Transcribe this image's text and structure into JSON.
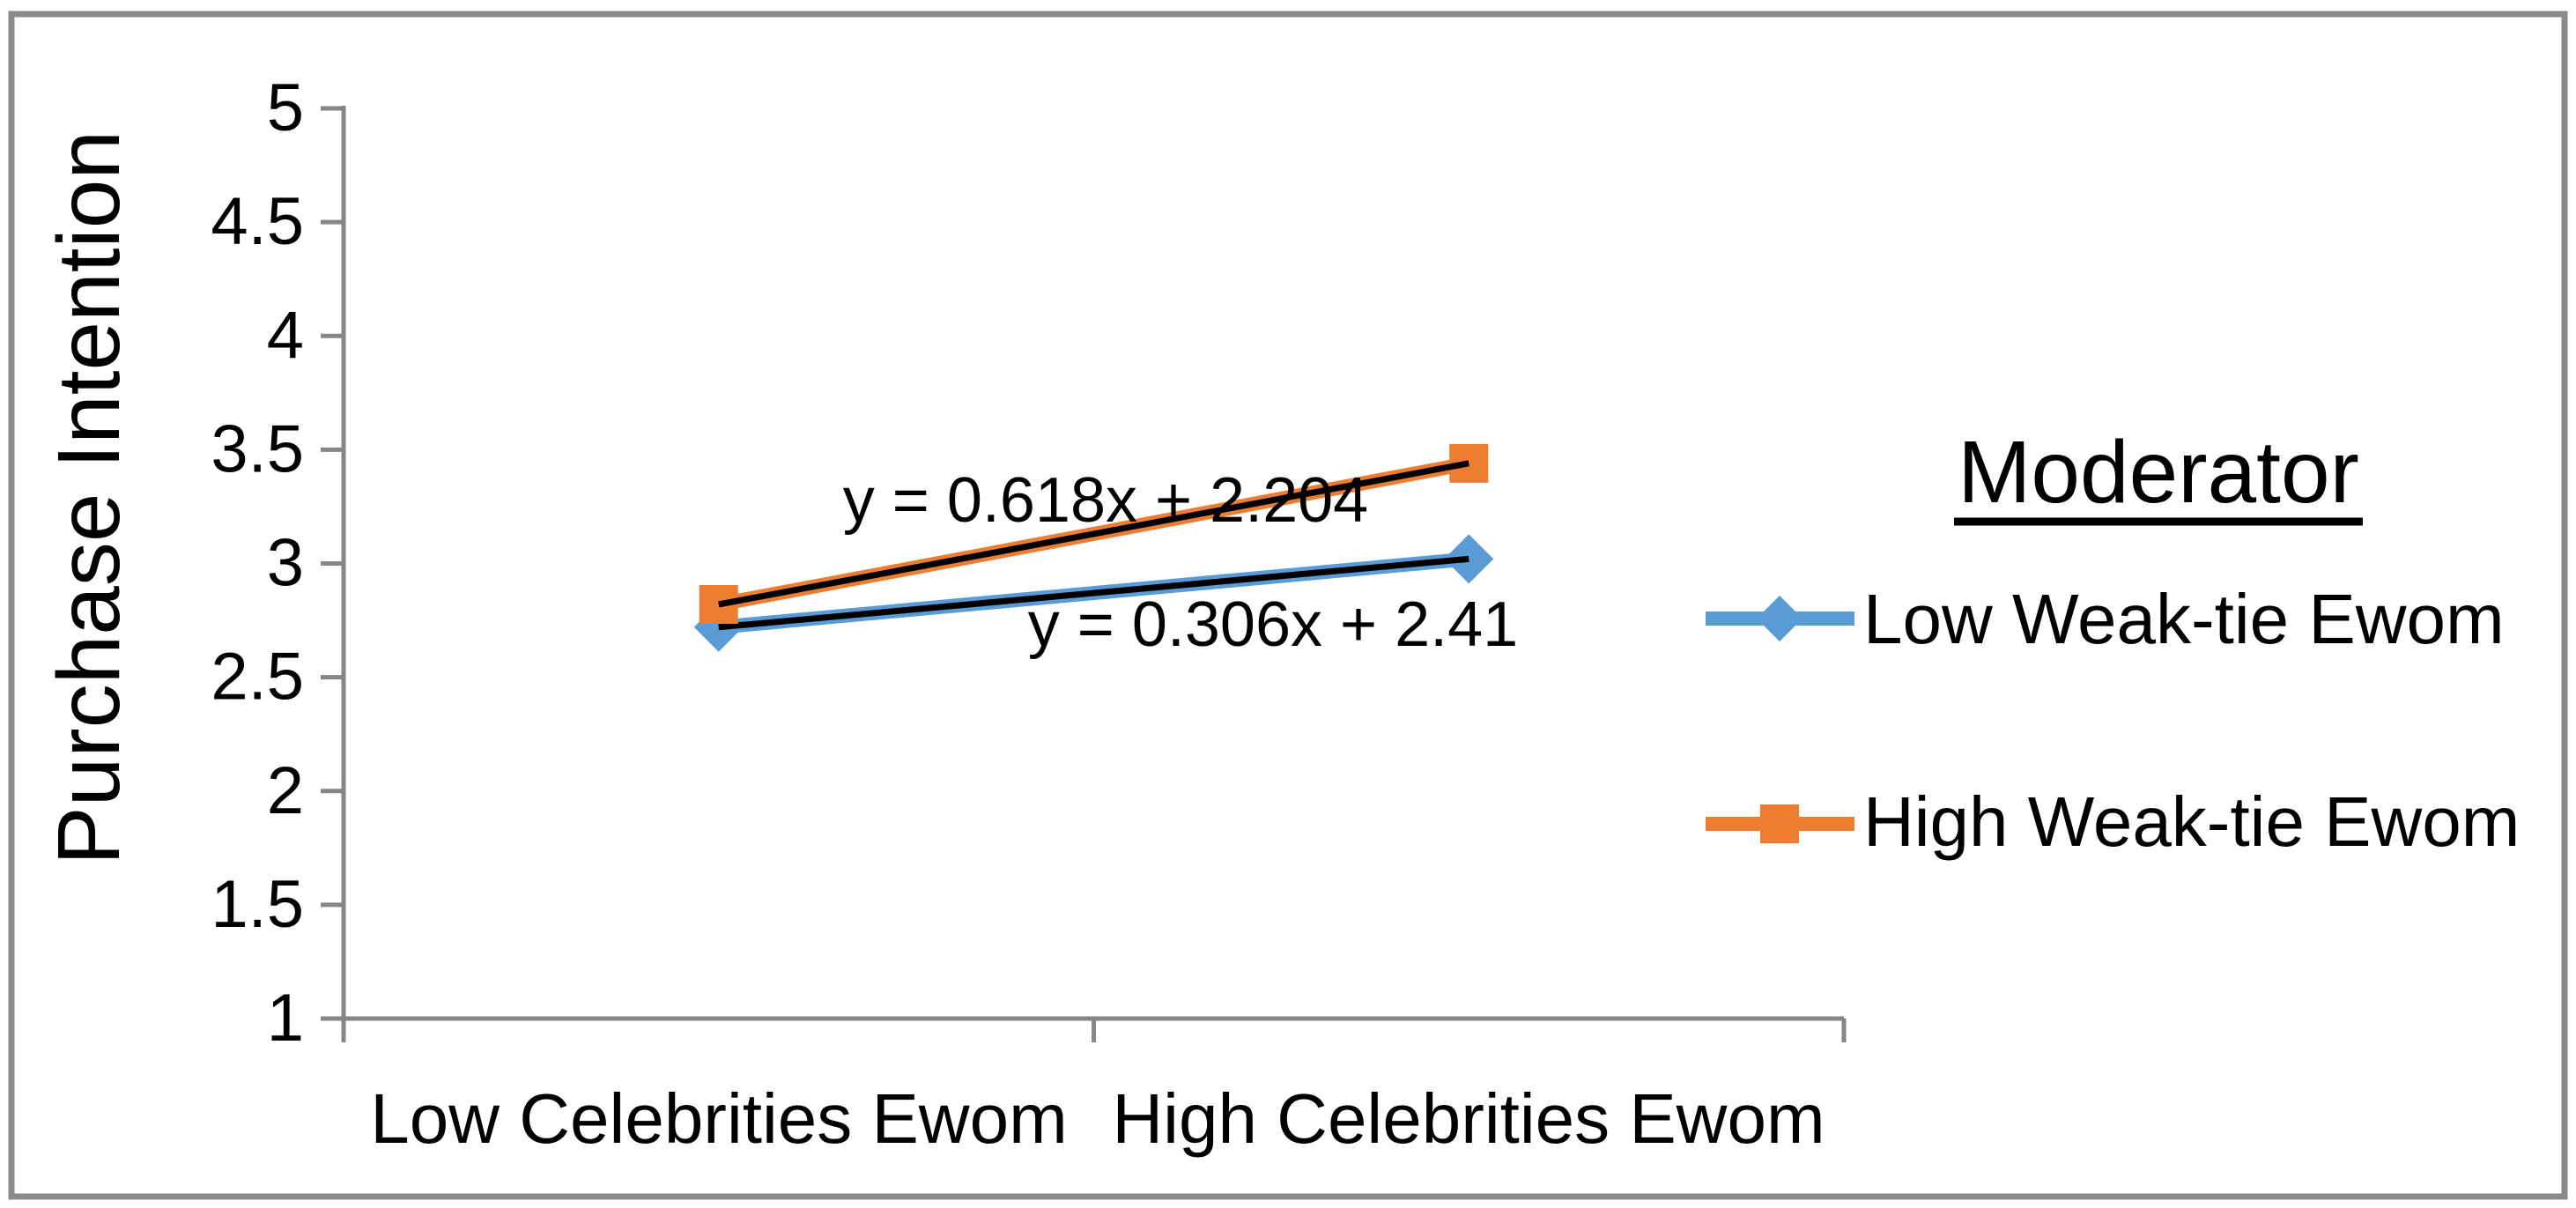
{
  "frame": {
    "background": "#ffffff",
    "border_color": "#8a8a8a"
  },
  "chart_data": {
    "type": "line",
    "title": "",
    "xlabel": "",
    "ylabel": "Purchase Intention",
    "categories": [
      "Low Celebrities Ewom",
      "High Celebrities Ewom"
    ],
    "series": [
      {
        "name": "Low Weak-tie Ewom",
        "values": [
          2.72,
          3.02
        ],
        "color": "#5B9BD5",
        "marker": "diamond",
        "trendline": true,
        "trendline_color": "#000000"
      },
      {
        "name": "High Weak-tie Ewom",
        "values": [
          2.82,
          3.44
        ],
        "color": "#ED7D31",
        "marker": "square",
        "trendline": true,
        "trendline_color": "#000000"
      }
    ],
    "annotations": [
      {
        "text": "y = 0.618x + 2.204",
        "series": "High Weak-tie Ewom"
      },
      {
        "text": "y = 0.306x + 2.41",
        "series": "Low Weak-tie Ewom"
      }
    ],
    "ylim": [
      1,
      5
    ],
    "ytick_step": 0.5,
    "yticks": [
      "1",
      "1.5",
      "2",
      "2.5",
      "3",
      "3.5",
      "4",
      "4.5",
      "5"
    ],
    "grid": false,
    "axis_color": "#868686",
    "text_color": "#000000",
    "legend": {
      "position": "right",
      "title": "Moderator",
      "title_underlined": true,
      "items": [
        "Low Weak-tie Ewom",
        "High Weak-tie Ewom"
      ]
    }
  }
}
